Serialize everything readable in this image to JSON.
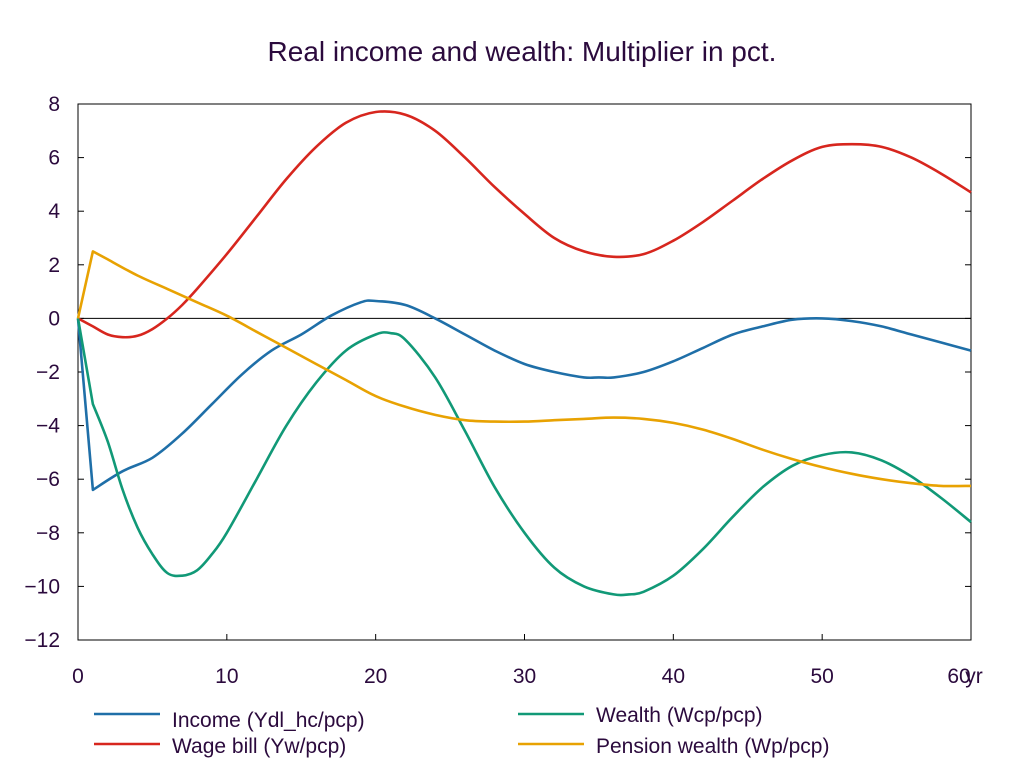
{
  "chart_data": {
    "type": "line",
    "title": "Real income and wealth: Multiplier in pct.",
    "x_unit": "yr",
    "xlim": [
      0,
      60
    ],
    "ylim": [
      -12,
      8
    ],
    "x_ticks": [
      0,
      10,
      20,
      30,
      40,
      50,
      60
    ],
    "y_ticks": [
      8,
      6,
      4,
      2,
      0,
      -2,
      -4,
      -6,
      -8,
      -10,
      -12
    ],
    "zero_line": true,
    "grid": false,
    "legend_position": "bottom",
    "series": [
      {
        "name": "Income (Ydl_hc/pcp)",
        "color": "#1f6fa8",
        "x": [
          0,
          1,
          3,
          5,
          7,
          9,
          11,
          13,
          15,
          17,
          19,
          20,
          22,
          24,
          26,
          28,
          30,
          32,
          34,
          35,
          36,
          38,
          40,
          42,
          44,
          46,
          48,
          50,
          52,
          54,
          56,
          58,
          60
        ],
        "y": [
          0,
          -6.4,
          -5.7,
          -5.2,
          -4.3,
          -3.2,
          -2.1,
          -1.2,
          -0.6,
          0.1,
          0.6,
          0.65,
          0.5,
          0.0,
          -0.6,
          -1.2,
          -1.7,
          -2.0,
          -2.2,
          -2.2,
          -2.2,
          -2.0,
          -1.6,
          -1.1,
          -0.6,
          -0.3,
          -0.05,
          0.0,
          -0.1,
          -0.3,
          -0.6,
          -0.9,
          -1.2
        ]
      },
      {
        "name": "Wage bill (Yw/pcp)",
        "color": "#d7261e",
        "x": [
          0,
          1,
          2,
          3,
          4,
          5,
          6,
          7,
          8,
          10,
          12,
          14,
          16,
          18,
          20,
          22,
          24,
          26,
          28,
          30,
          32,
          34,
          36,
          38,
          40,
          42,
          44,
          46,
          48,
          50,
          52,
          54,
          56,
          58,
          60
        ],
        "y": [
          0,
          -0.3,
          -0.6,
          -0.7,
          -0.65,
          -0.4,
          0.0,
          0.5,
          1.1,
          2.4,
          3.8,
          5.2,
          6.4,
          7.3,
          7.7,
          7.6,
          7.0,
          6.0,
          4.9,
          3.9,
          3.0,
          2.5,
          2.3,
          2.4,
          2.9,
          3.6,
          4.4,
          5.2,
          5.9,
          6.4,
          6.5,
          6.4,
          6.0,
          5.4,
          4.7
        ]
      },
      {
        "name": "Wealth (Wcp/pcp)",
        "color": "#119977",
        "x": [
          0,
          1,
          2,
          3,
          4,
          5,
          6,
          7,
          8,
          9,
          10,
          12,
          14,
          16,
          18,
          20,
          21,
          22,
          24,
          26,
          28,
          30,
          32,
          34,
          36,
          37,
          38,
          40,
          42,
          44,
          46,
          48,
          50,
          52,
          54,
          56,
          58,
          60
        ],
        "y": [
          0,
          -3.2,
          -4.6,
          -6.4,
          -7.8,
          -8.8,
          -9.5,
          -9.6,
          -9.4,
          -8.8,
          -8.0,
          -6.0,
          -4.0,
          -2.4,
          -1.2,
          -0.6,
          -0.55,
          -0.8,
          -2.2,
          -4.2,
          -6.3,
          -8.0,
          -9.3,
          -10.0,
          -10.3,
          -10.3,
          -10.2,
          -9.6,
          -8.6,
          -7.4,
          -6.3,
          -5.5,
          -5.1,
          -5.0,
          -5.3,
          -5.9,
          -6.7,
          -7.6
        ]
      },
      {
        "name": "Pension wealth (Wp/pcp)",
        "color": "#e8a202",
        "x": [
          0,
          1,
          2,
          4,
          6,
          8,
          10,
          12,
          14,
          16,
          18,
          20,
          22,
          24,
          26,
          28,
          30,
          32,
          34,
          36,
          38,
          40,
          42,
          44,
          46,
          48,
          50,
          52,
          54,
          56,
          58,
          60
        ],
        "y": [
          0,
          2.5,
          2.2,
          1.6,
          1.1,
          0.6,
          0.1,
          -0.5,
          -1.1,
          -1.7,
          -2.3,
          -2.9,
          -3.3,
          -3.6,
          -3.8,
          -3.85,
          -3.85,
          -3.8,
          -3.75,
          -3.7,
          -3.75,
          -3.9,
          -4.15,
          -4.5,
          -4.9,
          -5.25,
          -5.55,
          -5.8,
          -6.0,
          -6.15,
          -6.25,
          -6.25
        ]
      }
    ]
  }
}
